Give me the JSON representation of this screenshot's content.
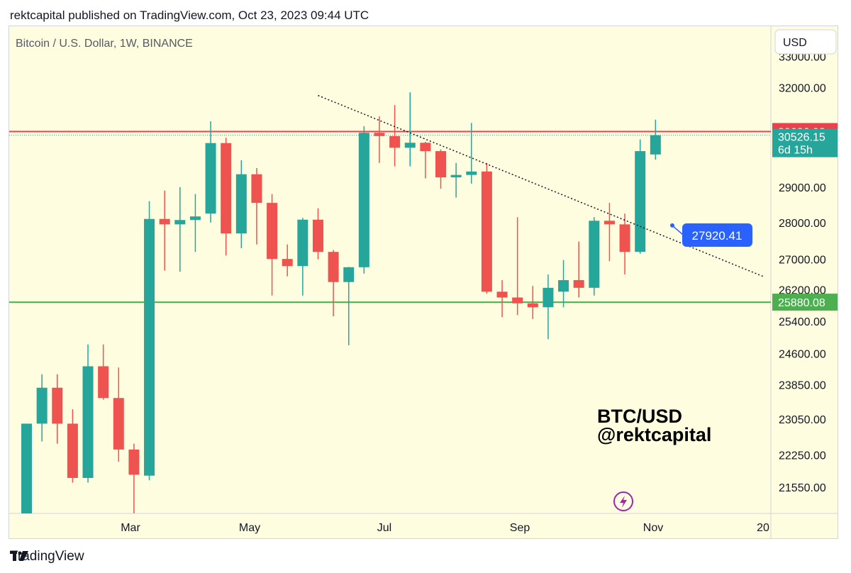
{
  "header": {
    "published": "rektcapital published on TradingView.com, Oct 23, 2023 09:44 UTC"
  },
  "chart": {
    "symbol_title": "Bitcoin / U.S. Dollar, 1W, BINANCE",
    "currency_button": "USD",
    "watermark_line1": "BTC/USD",
    "watermark_line2": "@rektcapital",
    "lightning_icon": "lightning-bolt-icon"
  },
  "footer": {
    "brand": "TradingView",
    "logo_icon": "tradingview-logo-icon"
  },
  "colors": {
    "background": "#fffde0",
    "bull": "#26a69a",
    "bear": "#ef5350",
    "resistance": "#e8434c",
    "support": "#4caf50",
    "callout": "#2962ff",
    "lightning": "#9c27b0"
  },
  "chart_data": {
    "type": "candlestick",
    "title": "Bitcoin / U.S. Dollar, 1W, BINANCE",
    "ytick_labels": [
      "33000.00",
      "32000.00",
      "29000.00",
      "28000.00",
      "27000.00",
      "26200.00",
      "25400.00",
      "24600.00",
      "23850.00",
      "23050.00",
      "22250.00",
      "21550.00"
    ],
    "xtick_labels": [
      "Mar",
      "May",
      "Jul",
      "Sep",
      "Nov",
      "20"
    ],
    "ylim": [
      21000,
      34000
    ],
    "y_scale": "log",
    "candles": [
      {
        "o": 21000,
        "h": 22950,
        "l": 20950,
        "c": 22950
      },
      {
        "o": 22950,
        "h": 24100,
        "l": 22550,
        "c": 23780
      },
      {
        "o": 23780,
        "h": 24100,
        "l": 22500,
        "c": 22950
      },
      {
        "o": 22950,
        "h": 23280,
        "l": 21650,
        "c": 21750
      },
      {
        "o": 21750,
        "h": 24820,
        "l": 21650,
        "c": 24290
      },
      {
        "o": 24290,
        "h": 24820,
        "l": 23500,
        "c": 23540
      },
      {
        "o": 23540,
        "h": 24260,
        "l": 22100,
        "c": 22370
      },
      {
        "o": 22370,
        "h": 22500,
        "l": 20950,
        "c": 21820
      },
      {
        "o": 21800,
        "h": 28600,
        "l": 21700,
        "c": 28100
      },
      {
        "o": 28100,
        "h": 28900,
        "l": 26700,
        "c": 27950
      },
      {
        "o": 27950,
        "h": 29000,
        "l": 26670,
        "c": 28070
      },
      {
        "o": 28070,
        "h": 28800,
        "l": 27200,
        "c": 28170
      },
      {
        "o": 28250,
        "h": 30950,
        "l": 28000,
        "c": 30290
      },
      {
        "o": 30290,
        "h": 30450,
        "l": 27100,
        "c": 27700
      },
      {
        "o": 27700,
        "h": 29780,
        "l": 27300,
        "c": 29370
      },
      {
        "o": 29370,
        "h": 29550,
        "l": 27400,
        "c": 28550
      },
      {
        "o": 28550,
        "h": 28800,
        "l": 26050,
        "c": 27010
      },
      {
        "o": 27010,
        "h": 27400,
        "l": 26550,
        "c": 26820
      },
      {
        "o": 26820,
        "h": 28130,
        "l": 26050,
        "c": 28080
      },
      {
        "o": 28080,
        "h": 28400,
        "l": 27000,
        "c": 27200
      },
      {
        "o": 27200,
        "h": 27250,
        "l": 25520,
        "c": 26400
      },
      {
        "o": 26400,
        "h": 26800,
        "l": 24800,
        "c": 26790
      },
      {
        "o": 26790,
        "h": 30800,
        "l": 26620,
        "c": 30600
      },
      {
        "o": 30600,
        "h": 31100,
        "l": 29700,
        "c": 30500
      },
      {
        "o": 30500,
        "h": 31450,
        "l": 29600,
        "c": 30150
      },
      {
        "o": 30150,
        "h": 31850,
        "l": 29600,
        "c": 30300
      },
      {
        "o": 30300,
        "h": 30330,
        "l": 29250,
        "c": 30050
      },
      {
        "o": 30050,
        "h": 30100,
        "l": 28950,
        "c": 29280
      },
      {
        "o": 29280,
        "h": 29700,
        "l": 28700,
        "c": 29350
      },
      {
        "o": 29350,
        "h": 30900,
        "l": 29100,
        "c": 29450
      },
      {
        "o": 29450,
        "h": 29700,
        "l": 26100,
        "c": 26150
      },
      {
        "o": 26150,
        "h": 26450,
        "l": 25500,
        "c": 26000
      },
      {
        "o": 26000,
        "h": 28150,
        "l": 25550,
        "c": 25850
      },
      {
        "o": 25850,
        "h": 26300,
        "l": 25450,
        "c": 25750
      },
      {
        "o": 25750,
        "h": 26600,
        "l": 24950,
        "c": 26250
      },
      {
        "o": 26150,
        "h": 26980,
        "l": 25750,
        "c": 26450
      },
      {
        "o": 26450,
        "h": 27480,
        "l": 26000,
        "c": 26250
      },
      {
        "o": 26250,
        "h": 28150,
        "l": 26050,
        "c": 28050
      },
      {
        "o": 28050,
        "h": 28550,
        "l": 26950,
        "c": 27950
      },
      {
        "o": 27950,
        "h": 28250,
        "l": 26600,
        "c": 27200
      },
      {
        "o": 27200,
        "h": 30400,
        "l": 27150,
        "c": 30050
      },
      {
        "o": 29950,
        "h": 31000,
        "l": 29800,
        "c": 30526.15
      }
    ],
    "horizontal_levels": [
      {
        "value": 30636.93,
        "label": "30636.93",
        "color": "#e8434c"
      },
      {
        "value": 25880.08,
        "label": "25880.08",
        "color": "#4caf50"
      }
    ],
    "price_tags": [
      {
        "label": "30636.93",
        "sublabel": ""
      },
      {
        "label": "30526.15",
        "sublabel": "6d 15h"
      }
    ],
    "trendline": {
      "from_index": 19,
      "from_value": 31750,
      "to_index": 48,
      "to_value": 26550
    },
    "callout": {
      "index": 42,
      "value": 27920.41,
      "label": "27920.41"
    }
  }
}
